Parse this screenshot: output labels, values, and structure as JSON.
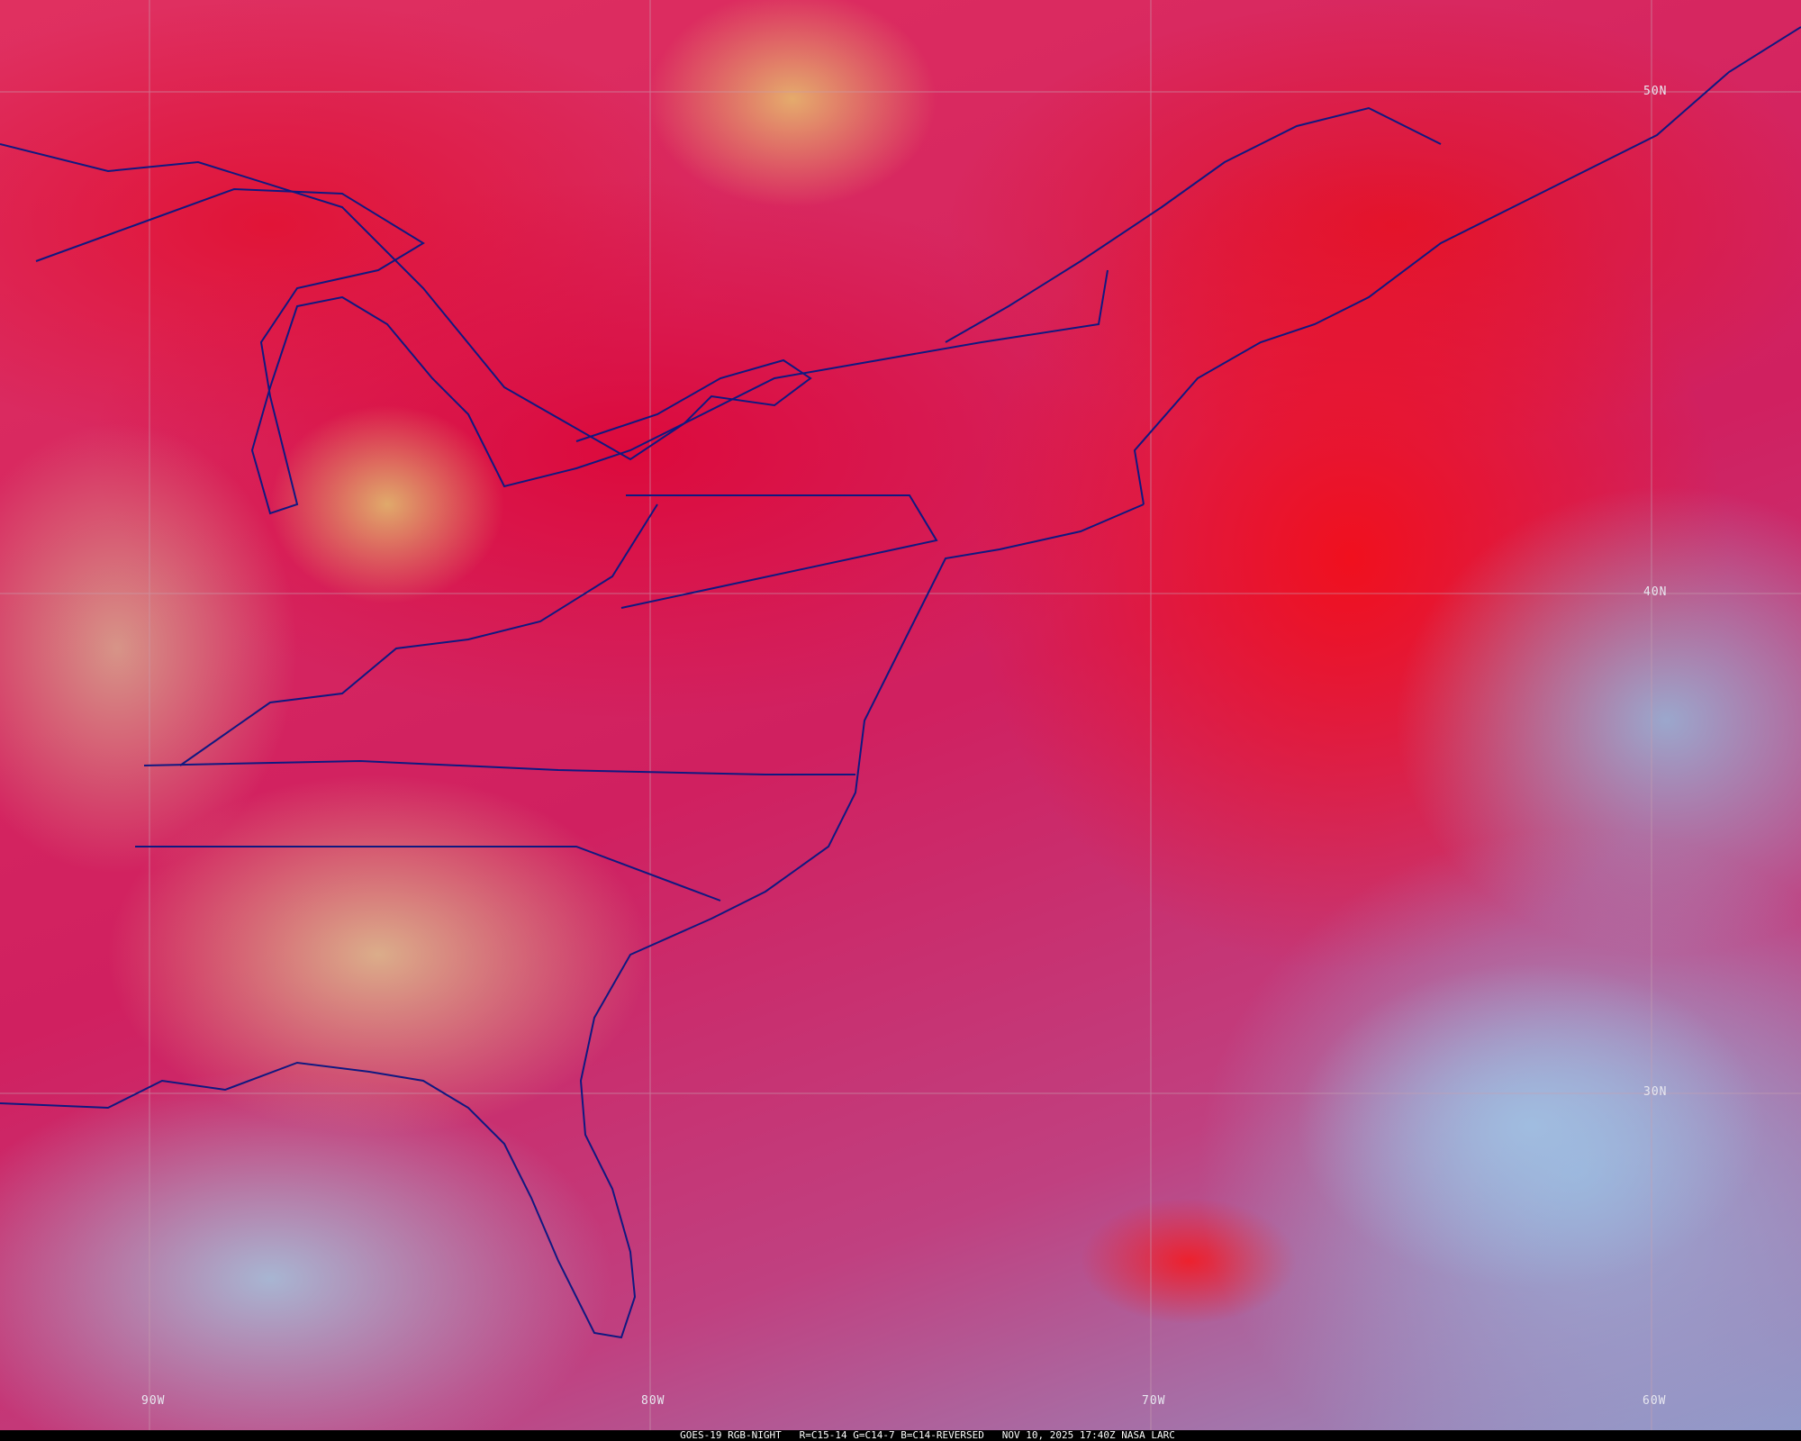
{
  "image": {
    "caption": "GOES-19 RGB-NIGHT   R=C15-14 G=C14-7 B=C14-REVERSED   NOV 10, 2025 17:40Z NASA LARC",
    "latitude_labels": [
      "50N",
      "40N",
      "30N"
    ],
    "longitude_labels": [
      "90W",
      "80W",
      "70W",
      "60W"
    ],
    "colors": {
      "boundaries": "#101880",
      "grid": "#c8a0b0",
      "high_cloud_red": "#f01020",
      "clear_land_tan": "#d8b080",
      "clear_ocean_blue": "#98b8d8"
    }
  }
}
